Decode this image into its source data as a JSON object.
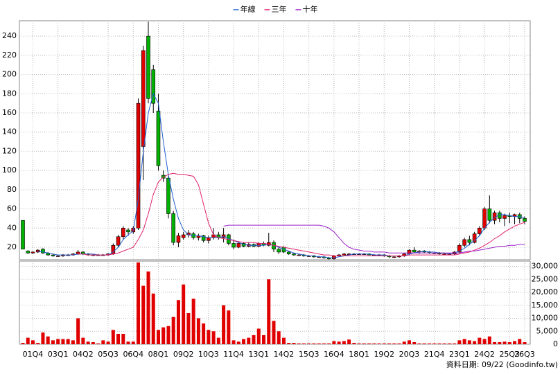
{
  "chart_data": {
    "type": "candlestick",
    "legend": "top",
    "categories": [
      null,
      null,
      "01Q4",
      null,
      null,
      null,
      null,
      "03Q1",
      null,
      null,
      null,
      null,
      "04Q2",
      null,
      null,
      null,
      null,
      "05Q3",
      null,
      null,
      null,
      null,
      "06Q4",
      null,
      null,
      null,
      null,
      "08Q1",
      null,
      null,
      null,
      null,
      "09Q2",
      null,
      null,
      null,
      null,
      "10Q3",
      null,
      null,
      null,
      null,
      "11Q4",
      null,
      null,
      null,
      null,
      "13Q1",
      null,
      null,
      null,
      null,
      "14Q2",
      null,
      null,
      null,
      null,
      "15Q3",
      null,
      null,
      null,
      null,
      "16Q4",
      null,
      null,
      null,
      null,
      "18Q1",
      null,
      null,
      null,
      null,
      "19Q2",
      null,
      null,
      null,
      null,
      "20Q3",
      null,
      null,
      null,
      null,
      "21Q4",
      null,
      null,
      null,
      null,
      "23Q1",
      null,
      null,
      null,
      null,
      "24Q2",
      null,
      null,
      null,
      null,
      "25Q3",
      null,
      null,
      "26Q3"
    ],
    "ohlc": [
      [
        48,
        48,
        18,
        18
      ],
      [
        16,
        17,
        13,
        14
      ],
      [
        14,
        16,
        13,
        15
      ],
      [
        15,
        18,
        14,
        17
      ],
      [
        18,
        19,
        13,
        14
      ],
      [
        14,
        15,
        11,
        12
      ],
      [
        12,
        13,
        10,
        11
      ],
      [
        11,
        12,
        10,
        11
      ],
      [
        11,
        13,
        10,
        12
      ],
      [
        12,
        13,
        11,
        12
      ],
      [
        12,
        14,
        11,
        13
      ],
      [
        13,
        17,
        12,
        15
      ],
      [
        15,
        16,
        12,
        13
      ],
      [
        13,
        14,
        11,
        12
      ],
      [
        12,
        13,
        11,
        12
      ],
      [
        12,
        13,
        11,
        12
      ],
      [
        12,
        13,
        11,
        12
      ],
      [
        12,
        14,
        11,
        13
      ],
      [
        13,
        24,
        12,
        22
      ],
      [
        22,
        33,
        20,
        31
      ],
      [
        31,
        42,
        28,
        40
      ],
      [
        38,
        40,
        32,
        36
      ],
      [
        36,
        42,
        34,
        40
      ],
      [
        40,
        175,
        38,
        170
      ],
      [
        125,
        230,
        90,
        225
      ],
      [
        240,
        255,
        170,
        175
      ],
      [
        205,
        210,
        160,
        170
      ],
      [
        162,
        180,
        100,
        105
      ],
      [
        95,
        100,
        88,
        92
      ],
      [
        92,
        95,
        50,
        55
      ],
      [
        55,
        58,
        22,
        25
      ],
      [
        25,
        35,
        20,
        32
      ],
      [
        30,
        36,
        28,
        33
      ],
      [
        33,
        38,
        30,
        35
      ],
      [
        34,
        36,
        28,
        30
      ],
      [
        30,
        34,
        27,
        32
      ],
      [
        32,
        33,
        25,
        27
      ],
      [
        27,
        32,
        24,
        30
      ],
      [
        30,
        40,
        28,
        33
      ],
      [
        33,
        36,
        28,
        30
      ],
      [
        30,
        40,
        25,
        33
      ],
      [
        33,
        34,
        22,
        24
      ],
      [
        24,
        28,
        18,
        20
      ],
      [
        20,
        26,
        19,
        24
      ],
      [
        24,
        25,
        20,
        21
      ],
      [
        21,
        25,
        20,
        23
      ],
      [
        23,
        24,
        20,
        21
      ],
      [
        21,
        25,
        20,
        24
      ],
      [
        24,
        26,
        21,
        22
      ],
      [
        22,
        35,
        21,
        25
      ],
      [
        25,
        27,
        15,
        18
      ],
      [
        18,
        20,
        13,
        15
      ],
      [
        20,
        21,
        14,
        15
      ],
      [
        15,
        16,
        12,
        13
      ],
      [
        13,
        14,
        11,
        12
      ],
      [
        12,
        13,
        11,
        12
      ],
      [
        12,
        13,
        10,
        11
      ],
      [
        11,
        12,
        10,
        11
      ],
      [
        11,
        12,
        9,
        10
      ],
      [
        10,
        11,
        9,
        10
      ],
      [
        10,
        11,
        8,
        9
      ],
      [
        9,
        10,
        7,
        8
      ],
      [
        8,
        12,
        7,
        11
      ],
      [
        11,
        13,
        10,
        12
      ],
      [
        12,
        14,
        11,
        13
      ],
      [
        13,
        14,
        12,
        13
      ],
      [
        13,
        14,
        12,
        13
      ],
      [
        13,
        14,
        12,
        13
      ],
      [
        13,
        14,
        12,
        13
      ],
      [
        13,
        14,
        12,
        12
      ],
      [
        12,
        13,
        11,
        12
      ],
      [
        12,
        13,
        11,
        12
      ],
      [
        12,
        13,
        10,
        11
      ],
      [
        11,
        12,
        9,
        10
      ],
      [
        10,
        11,
        9,
        10
      ],
      [
        10,
        12,
        9,
        11
      ],
      [
        11,
        14,
        10,
        13
      ],
      [
        13,
        18,
        12,
        17
      ],
      [
        17,
        20,
        14,
        15
      ],
      [
        15,
        17,
        13,
        16
      ],
      [
        16,
        17,
        14,
        15
      ],
      [
        15,
        16,
        13,
        14
      ],
      [
        14,
        15,
        13,
        14
      ],
      [
        14,
        15,
        12,
        13
      ],
      [
        13,
        14,
        12,
        13
      ],
      [
        13,
        14,
        12,
        13
      ],
      [
        13,
        16,
        12,
        15
      ],
      [
        15,
        24,
        14,
        22
      ],
      [
        22,
        30,
        20,
        28
      ],
      [
        28,
        32,
        22,
        25
      ],
      [
        25,
        36,
        24,
        34
      ],
      [
        34,
        42,
        32,
        40
      ],
      [
        40,
        62,
        38,
        60
      ],
      [
        60,
        74,
        45,
        48
      ],
      [
        48,
        58,
        44,
        56
      ],
      [
        56,
        58,
        46,
        50
      ],
      [
        50,
        55,
        42,
        53
      ],
      [
        53,
        56,
        45,
        52
      ],
      [
        52,
        55,
        44,
        54
      ],
      [
        54,
        56,
        45,
        50
      ],
      [
        50,
        52,
        44,
        47
      ]
    ],
    "up_color": "#e00000",
    "down_color": "#00b000",
    "ylim": [
      7,
      256
    ],
    "yticks": [
      20,
      40,
      60,
      80,
      100,
      120,
      140,
      160,
      180,
      200,
      220,
      240
    ],
    "grid": true,
    "series": [
      {
        "name": "年線",
        "color": "#1f5fd0",
        "values": [
          null,
          null,
          null,
          16,
          15,
          14,
          13,
          12,
          12,
          12,
          12,
          13,
          13,
          13,
          13,
          12,
          12,
          12,
          15,
          20,
          28,
          33,
          37,
          70,
          120,
          160,
          180,
          170,
          130,
          95,
          70,
          50,
          38,
          33,
          32,
          32,
          31,
          30,
          30,
          30,
          31,
          29,
          27,
          25,
          23,
          22,
          22,
          22,
          22,
          23,
          22,
          20,
          18,
          16,
          14,
          13,
          12,
          11,
          11,
          10,
          10,
          9,
          9,
          10,
          11,
          12,
          13,
          13,
          13,
          13,
          12,
          12,
          12,
          11,
          11,
          11,
          11,
          13,
          14,
          15,
          16,
          15,
          15,
          14,
          14,
          13,
          14,
          16,
          19,
          23,
          27,
          32,
          40,
          46,
          51,
          54,
          54,
          53,
          52,
          52,
          51
        ]
      },
      {
        "name": "三年",
        "color": "#e0206a",
        "values": [
          null,
          null,
          null,
          null,
          null,
          null,
          null,
          null,
          null,
          null,
          null,
          13,
          13,
          12,
          12,
          12,
          12,
          12,
          13,
          14,
          16,
          18,
          20,
          28,
          38,
          55,
          75,
          88,
          93,
          96,
          97,
          96,
          96,
          95,
          94,
          85,
          65,
          45,
          33,
          30,
          29,
          28,
          27,
          26,
          25,
          25,
          25,
          24,
          24,
          23,
          22,
          21,
          20,
          19,
          18,
          17,
          16,
          15,
          14,
          13,
          12,
          12,
          11,
          11,
          11,
          11,
          11,
          11,
          11,
          11,
          11,
          11,
          11,
          11,
          11,
          11,
          11,
          12,
          12,
          12,
          12,
          12,
          12,
          12,
          12,
          12,
          12,
          13,
          14,
          15,
          17,
          19,
          22,
          25,
          29,
          32,
          36,
          39,
          42,
          44,
          46
        ]
      },
      {
        "name": "十年",
        "color": "#9a20c8",
        "values": [
          null,
          null,
          null,
          null,
          null,
          null,
          null,
          null,
          null,
          null,
          null,
          null,
          null,
          null,
          null,
          null,
          null,
          null,
          null,
          null,
          null,
          null,
          null,
          null,
          null,
          null,
          null,
          null,
          null,
          null,
          null,
          null,
          null,
          null,
          null,
          null,
          null,
          null,
          null,
          null,
          42,
          43,
          43,
          43,
          43,
          43,
          43,
          43,
          43,
          43,
          43,
          43,
          43,
          43,
          43,
          43,
          43,
          43,
          43,
          43,
          42,
          40,
          36,
          30,
          24,
          20,
          18,
          17,
          16,
          16,
          15,
          15,
          15,
          14,
          14,
          14,
          14,
          14,
          14,
          14,
          14,
          14,
          14,
          14,
          14,
          14,
          14,
          14,
          15,
          16,
          16,
          17,
          18,
          19,
          20,
          21,
          21,
          22,
          22,
          23,
          23
        ]
      }
    ],
    "volume": {
      "axis": "y2",
      "color": "#e00000",
      "values": [
        500,
        2500,
        1500,
        500,
        4500,
        3000,
        1500,
        2000,
        2000,
        2000,
        1500,
        10000,
        2500,
        1000,
        800,
        300,
        1500,
        1000,
        5500,
        4000,
        4000,
        1000,
        1000,
        31500,
        22500,
        28000,
        19500,
        5500,
        6500,
        7000,
        10500,
        17000,
        23000,
        12000,
        17500,
        10000,
        8000,
        5500,
        5000,
        2500,
        15000,
        13000,
        1500,
        1000,
        2000,
        2500,
        3500,
        6000,
        3500,
        25000,
        9000,
        5000,
        2500,
        500,
        500,
        300,
        300,
        300,
        300,
        300,
        300,
        300,
        1200,
        1000,
        1200,
        1800,
        500,
        300,
        300,
        300,
        300,
        300,
        300,
        300,
        300,
        300,
        1000,
        1500,
        800,
        300,
        300,
        300,
        300,
        300,
        300,
        300,
        300,
        1500,
        2000,
        1500,
        1200,
        2500,
        2000,
        3000,
        800,
        800,
        1000,
        800,
        1200,
        2000,
        800
      ]
    },
    "y2lim": [
      0,
      32000
    ],
    "y2ticks": [
      0,
      {
        "value": 5000,
        "label": "5,000"
      },
      {
        "value": 10000,
        "label": "10,000"
      },
      {
        "value": 15000,
        "label": "15,000"
      },
      {
        "value": 20000,
        "label": "20,000"
      },
      {
        "value": 25000,
        "label": "25,000"
      },
      {
        "value": 30000,
        "label": "30,000"
      }
    ],
    "footer": "資料日期: 09/22  (Goodinfo.tw)"
  }
}
